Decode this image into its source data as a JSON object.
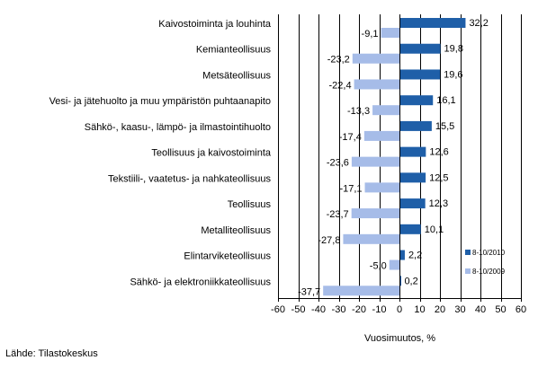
{
  "chart_data": {
    "type": "bar",
    "orientation": "horizontal",
    "categories": [
      "Kaivostoiminta ja louhinta",
      "Kemianteollisuus",
      "Metsäteollisuus",
      "Vesi- ja jätehuolto ja muu ympäristön puhtaanapito",
      "Sähkö-, kaasu-, lämpö- ja ilmastointihuolto",
      "Teollisuus ja kaivostoiminta",
      "Tekstiili-, vaatetus- ja nahkateollisuus",
      "Teollisuus",
      "Metalliteollisuus",
      "Elintarviketeollisuus",
      "Sähkö- ja elektroniikkateollisuus"
    ],
    "series": [
      {
        "name": "8-10/2010",
        "color": "#1f5fa8",
        "values": [
          32.2,
          19.8,
          19.6,
          16.1,
          15.5,
          12.6,
          12.5,
          12.3,
          10.1,
          2.2,
          0.2
        ],
        "labels": [
          "32,2",
          "19,8",
          "19,6",
          "16,1",
          "15,5",
          "12,6",
          "12,5",
          "12,3",
          "10,1",
          "2,2",
          "0,2"
        ]
      },
      {
        "name": "8-10/2009",
        "color": "#a6bce8",
        "values": [
          -9.1,
          -23.2,
          -22.4,
          -13.3,
          -17.4,
          -23.6,
          -17.1,
          -23.7,
          -27.8,
          -5.0,
          -37.7
        ],
        "labels": [
          "-9,1",
          "-23,2",
          "-22,4",
          "-13,3",
          "-17,4",
          "-23,6",
          "-17,1",
          "-23,7",
          "-27,8",
          "-5,0",
          "-37,7"
        ]
      }
    ],
    "xlim": [
      -60,
      60
    ],
    "xticks": [
      -60,
      -50,
      -40,
      -30,
      -20,
      -10,
      0,
      10,
      20,
      30,
      40,
      50,
      60
    ],
    "tick_labels": [
      "-60",
      "-50",
      "-40",
      "-30",
      "-20",
      "-10",
      "0",
      "10",
      "20",
      "30",
      "40",
      "50",
      "60"
    ],
    "xlabel": "Vuosimuutos, %",
    "grid": "vertical",
    "legend_position": "bottom-right inside plot"
  },
  "source": "Lähde: Tilastokeskus"
}
